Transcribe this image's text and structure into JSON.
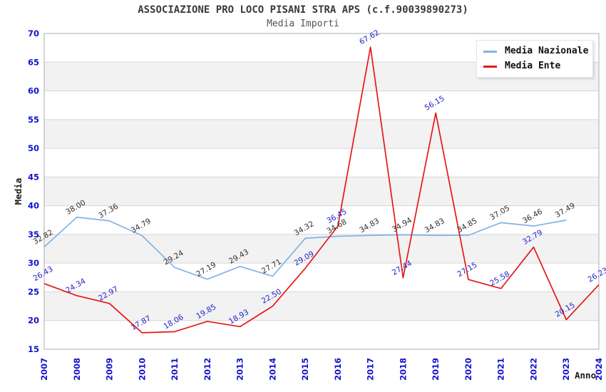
{
  "chart_data": {
    "type": "line",
    "title": "ASSOCIAZIONE PRO LOCO PISANI STRA APS (c.f.90039890273)",
    "subtitle": "Media Importi",
    "xlabel": "Anno",
    "ylabel": "Media",
    "ylim": [
      15,
      70
    ],
    "ytick_step": 5,
    "yticks": [
      15,
      20,
      25,
      30,
      35,
      40,
      45,
      50,
      55,
      60,
      65,
      70
    ],
    "grid": true,
    "legend_position": "top-right",
    "categories": [
      "2007",
      "2008",
      "2009",
      "2010",
      "2011",
      "2012",
      "2013",
      "2014",
      "2015",
      "2016",
      "2017",
      "2018",
      "2019",
      "2020",
      "2021",
      "2022",
      "2023",
      "2024"
    ],
    "series": [
      {
        "name": "Media Nazionale",
        "color": "#80b4e4",
        "label_color": "#303030",
        "values": [
          32.82,
          38.0,
          37.36,
          34.79,
          29.24,
          27.19,
          29.43,
          27.71,
          34.32,
          34.68,
          34.83,
          34.94,
          34.83,
          34.85,
          37.05,
          36.46,
          37.49,
          null
        ]
      },
      {
        "name": "Media Ente",
        "color": "#e61717",
        "label_color": "#2222cc",
        "values": [
          26.43,
          24.34,
          22.97,
          17.87,
          18.06,
          19.85,
          18.93,
          22.5,
          29.09,
          36.45,
          67.62,
          27.44,
          56.15,
          27.15,
          25.58,
          32.79,
          20.15,
          26.23
        ]
      }
    ],
    "style": {
      "tick_color": "#1212cf",
      "axis_label_color": "#1a1a1a",
      "band_color": "#f2f2f2",
      "grid_color": "#d6d6d6",
      "border_color": "#aeaeae",
      "background": "#ffffff"
    }
  }
}
